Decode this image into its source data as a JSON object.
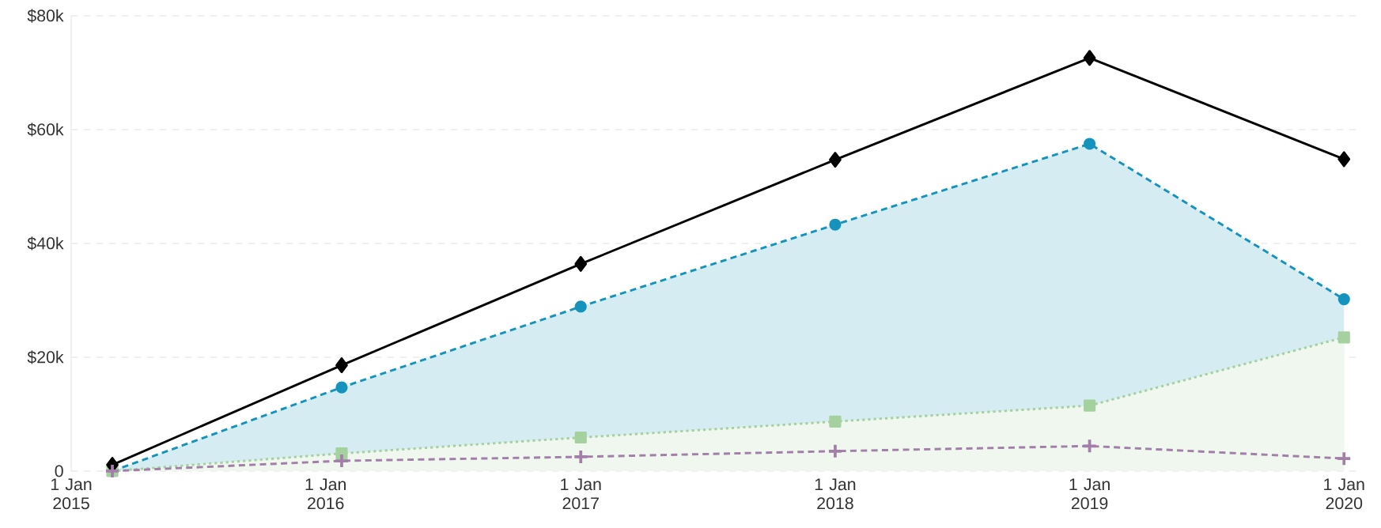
{
  "chart_data": {
    "type": "line",
    "x": [
      "2015-03-01",
      "2016-01-24",
      "2017-01-01",
      "2018-01-01",
      "2019-01-01",
      "2020-01-01"
    ],
    "series": [
      {
        "type": "area",
        "color": "#1494bc",
        "values": [
          0,
          14.7,
          28.9,
          43.3,
          57.5,
          30.2
        ],
        "marker": "circle",
        "line_style": "dashed"
      },
      {
        "type": "area",
        "color": "#a5d19e",
        "values": [
          0,
          3.1,
          5.9,
          8.7,
          11.5,
          23.5
        ],
        "marker": "square",
        "line_style": "dotted"
      },
      {
        "color": "#000000",
        "values": [
          1.1,
          18.6,
          36.4,
          54.7,
          72.6,
          54.8
        ],
        "marker": "diamond",
        "line_style": "solid"
      },
      {
        "color": "#a27fa9",
        "values": [
          0,
          1.8,
          2.5,
          3.5,
          4.4,
          2.2
        ],
        "marker": "cross",
        "line_style": "dashed"
      }
    ],
    "xlim": [
      "2015-01-01",
      "2020-01-20"
    ],
    "xticks": [
      {
        "value": "2015-01-01",
        "label": "1 Jan 2015"
      },
      {
        "value": "2016-01-01",
        "label": "1 Jan 2016"
      },
      {
        "value": "2017-01-01",
        "label": "1 Jan 2017"
      },
      {
        "value": "2018-01-01",
        "label": "1 Jan 2018"
      },
      {
        "value": "2019-01-01",
        "label": "1 Jan 2019"
      },
      {
        "value": "2020-01-01",
        "label": "1 Jan 2020"
      }
    ],
    "ylim": [
      0,
      80
    ],
    "yticks": [
      {
        "value": 0,
        "label": "0"
      },
      {
        "value": 20,
        "label": "$20k"
      },
      {
        "value": 40,
        "label": "$40k"
      },
      {
        "value": 60,
        "label": "$60k"
      },
      {
        "value": 80,
        "label": "$80k"
      }
    ],
    "grid": "y"
  }
}
